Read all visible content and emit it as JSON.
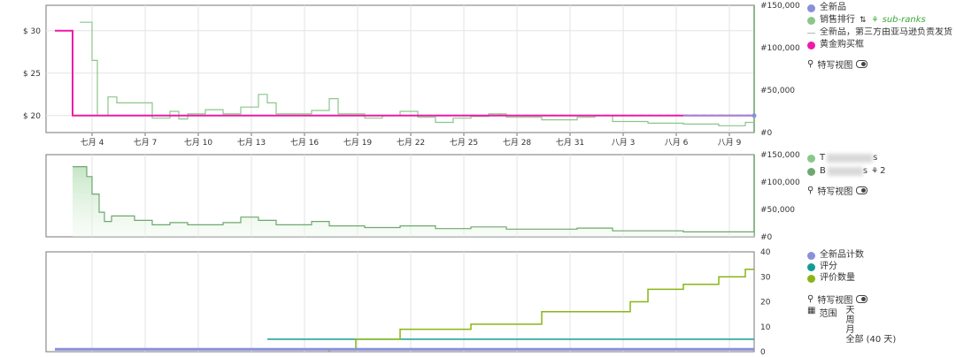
{
  "colors": {
    "new": "#8a8fdc",
    "rank": "#8bc68b",
    "third_party": "#b5b5b5",
    "buybox": "#ee1aa6",
    "rank2": "#6fa86f",
    "new_count": "#8a8fdc",
    "rating": "#139c97",
    "review_count": "#8ab515"
  },
  "panel1": {
    "legend": [
      {
        "label": "全新品",
        "color": "#8a8fdc",
        "marker": "dot"
      },
      {
        "label": "销售排行",
        "color": "#8bc68b",
        "marker": "dot",
        "extra": "sub-ranks"
      },
      {
        "label": "全新品，第三方由亚马逊负责发货",
        "color": "#b5b5b5",
        "marker": "dash"
      },
      {
        "label": "黄金购买框",
        "color": "#ee1aa6",
        "marker": "dot"
      }
    ],
    "closeup_label": "特写视图"
  },
  "panel2": {
    "legend": [
      {
        "label": "T",
        "color": "#8bc68b",
        "blurred_tail": "s"
      },
      {
        "label": "B",
        "color": "#6fa86f",
        "blurred_tail": "s",
        "rank_count": "2"
      }
    ],
    "closeup_label": "特写视图"
  },
  "panel3": {
    "legend": [
      {
        "label": "全新品计数",
        "color": "#8a8fdc"
      },
      {
        "label": "评分",
        "color": "#139c97"
      },
      {
        "label": "评价数量",
        "color": "#8ab515"
      }
    ],
    "closeup_label": "特写视图",
    "range_label": "范围",
    "range_options": [
      "天",
      "周",
      "月",
      "全部 (40 天)"
    ]
  },
  "chart_data": [
    {
      "type": "line",
      "x_ticks": [
        "七月 4",
        "七月 7",
        "七月 10",
        "七月 13",
        "七月 16",
        "七月 19",
        "七月 22",
        "七月 25",
        "七月 28",
        "七月 31",
        "八月 3",
        "八月 6",
        "八月 9"
      ],
      "x_range": [
        0,
        40
      ],
      "y_left": {
        "ticks": [
          "$ 20",
          "$ 25",
          "$ 30"
        ],
        "range": [
          18,
          33
        ]
      },
      "y_right": {
        "ticks": [
          "#0",
          "#50,000",
          "#100,000",
          "#150,000"
        ],
        "range": [
          0,
          150000
        ]
      },
      "series": [
        {
          "name": "黄金购买框",
          "axis": "left",
          "points": [
            [
              0.5,
              30
            ],
            [
              1.5,
              30
            ],
            [
              1.5,
              20
            ],
            [
              40,
              20
            ]
          ]
        },
        {
          "name": "全新品",
          "axis": "left",
          "points": [
            [
              36,
              20
            ],
            [
              40,
              20
            ]
          ]
        },
        {
          "name": "全新品，第三方由亚马逊负责发货",
          "axis": "left",
          "points": [
            [
              20,
              20.05
            ],
            [
              40,
              20.05
            ]
          ]
        },
        {
          "name": "销售排行",
          "axis": "right",
          "step": true,
          "points": [
            [
              1.9,
              130000
            ],
            [
              2.6,
              130000
            ],
            [
              2.6,
              85000
            ],
            [
              2.9,
              85000
            ],
            [
              2.9,
              20000
            ],
            [
              3.5,
              20000
            ],
            [
              3.5,
              42000
            ],
            [
              4.0,
              42000
            ],
            [
              4.0,
              35000
            ],
            [
              6,
              35000
            ],
            [
              6,
              17000
            ],
            [
              7,
              17000
            ],
            [
              7,
              25000
            ],
            [
              7.5,
              25000
            ],
            [
              7.5,
              16000
            ],
            [
              8,
              16000
            ],
            [
              8,
              22000
            ],
            [
              9,
              22000
            ],
            [
              9,
              27000
            ],
            [
              10,
              27000
            ],
            [
              10,
              22000
            ],
            [
              11,
              22000
            ],
            [
              11,
              30000
            ],
            [
              12,
              30000
            ],
            [
              12,
              45000
            ],
            [
              12.5,
              45000
            ],
            [
              12.5,
              35000
            ],
            [
              13,
              35000
            ],
            [
              13,
              22000
            ],
            [
              15,
              22000
            ],
            [
              15,
              26000
            ],
            [
              16,
              26000
            ],
            [
              16,
              40000
            ],
            [
              16.5,
              40000
            ],
            [
              16.5,
              22000
            ],
            [
              18,
              22000
            ],
            [
              18,
              17000
            ],
            [
              19,
              17000
            ],
            [
              19,
              20000
            ],
            [
              20,
              20000
            ],
            [
              20,
              25000
            ],
            [
              21,
              25000
            ],
            [
              21,
              18000
            ],
            [
              22,
              18000
            ],
            [
              22,
              12000
            ],
            [
              23,
              12000
            ],
            [
              23,
              17000
            ],
            [
              24,
              17000
            ],
            [
              24,
              19000
            ],
            [
              25,
              19000
            ],
            [
              25,
              22000
            ],
            [
              26,
              22000
            ],
            [
              26,
              18000
            ],
            [
              28,
              18000
            ],
            [
              28,
              15000
            ],
            [
              30,
              15000
            ],
            [
              30,
              18000
            ],
            [
              31,
              18000
            ],
            [
              31,
              20000
            ],
            [
              32,
              20000
            ],
            [
              32,
              13000
            ],
            [
              34,
              13000
            ],
            [
              34,
              11000
            ],
            [
              36,
              11000
            ],
            [
              36,
              10000
            ],
            [
              38,
              10000
            ],
            [
              38,
              8000
            ],
            [
              39.5,
              8000
            ],
            [
              39.5,
              12000
            ],
            [
              40,
              12000
            ]
          ]
        }
      ]
    },
    {
      "type": "area",
      "x_range": [
        0,
        40
      ],
      "y_right": {
        "ticks": [
          "#0",
          "#50,000",
          "#100,000",
          "#150,000"
        ],
        "range": [
          0,
          150000
        ]
      },
      "series": [
        {
          "name": "T",
          "step": true,
          "points": [
            [
              1.5,
              128000
            ],
            [
              2.3,
              128000
            ],
            [
              2.3,
              110000
            ],
            [
              2.6,
              110000
            ],
            [
              2.6,
              78000
            ],
            [
              3.0,
              78000
            ],
            [
              3.0,
              45000
            ],
            [
              3.3,
              45000
            ],
            [
              3.3,
              28000
            ],
            [
              3.7,
              28000
            ],
            [
              3.7,
              38000
            ],
            [
              5,
              38000
            ],
            [
              5,
              30000
            ],
            [
              6,
              30000
            ],
            [
              6,
              22000
            ],
            [
              7,
              22000
            ],
            [
              7,
              26000
            ],
            [
              8,
              26000
            ],
            [
              8,
              22000
            ],
            [
              10,
              22000
            ],
            [
              10,
              26000
            ],
            [
              11,
              26000
            ],
            [
              11,
              36000
            ],
            [
              12,
              36000
            ],
            [
              12,
              30000
            ],
            [
              13,
              30000
            ],
            [
              13,
              22000
            ],
            [
              15,
              22000
            ],
            [
              15,
              28000
            ],
            [
              16,
              28000
            ],
            [
              16,
              20000
            ],
            [
              18,
              20000
            ],
            [
              18,
              17000
            ],
            [
              20,
              17000
            ],
            [
              20,
              20000
            ],
            [
              22,
              20000
            ],
            [
              22,
              15000
            ],
            [
              24,
              15000
            ],
            [
              24,
              18000
            ],
            [
              26,
              18000
            ],
            [
              26,
              14000
            ],
            [
              30,
              14000
            ],
            [
              30,
              16000
            ],
            [
              32,
              16000
            ],
            [
              32,
              11000
            ],
            [
              36,
              11000
            ],
            [
              36,
              9000
            ],
            [
              40,
              9000
            ]
          ]
        }
      ]
    },
    {
      "type": "line",
      "x_range": [
        0,
        40
      ],
      "y_right": {
        "ticks": [
          "0",
          "10",
          "20",
          "30",
          "40"
        ],
        "range": [
          0,
          40
        ]
      },
      "series": [
        {
          "name": "全新品计数",
          "step": true,
          "points": [
            [
              0.5,
              1
            ],
            [
              40,
              1
            ]
          ]
        },
        {
          "name": "评分",
          "step": true,
          "points": [
            [
              12.5,
              5
            ],
            [
              40,
              5
            ]
          ]
        },
        {
          "name": "评价数量",
          "step": true,
          "points": [
            [
              16,
              0
            ],
            [
              16,
              1
            ],
            [
              17.5,
              1
            ],
            [
              17.5,
              5
            ],
            [
              20,
              5
            ],
            [
              20,
              9
            ],
            [
              24,
              9
            ],
            [
              24,
              11
            ],
            [
              28,
              11
            ],
            [
              28,
              16
            ],
            [
              33,
              16
            ],
            [
              33,
              20
            ],
            [
              34,
              20
            ],
            [
              34,
              25
            ],
            [
              36,
              25
            ],
            [
              36,
              27
            ],
            [
              38,
              27
            ],
            [
              38,
              30
            ],
            [
              39.5,
              30
            ],
            [
              39.5,
              33
            ],
            [
              40,
              33
            ]
          ]
        }
      ]
    }
  ]
}
